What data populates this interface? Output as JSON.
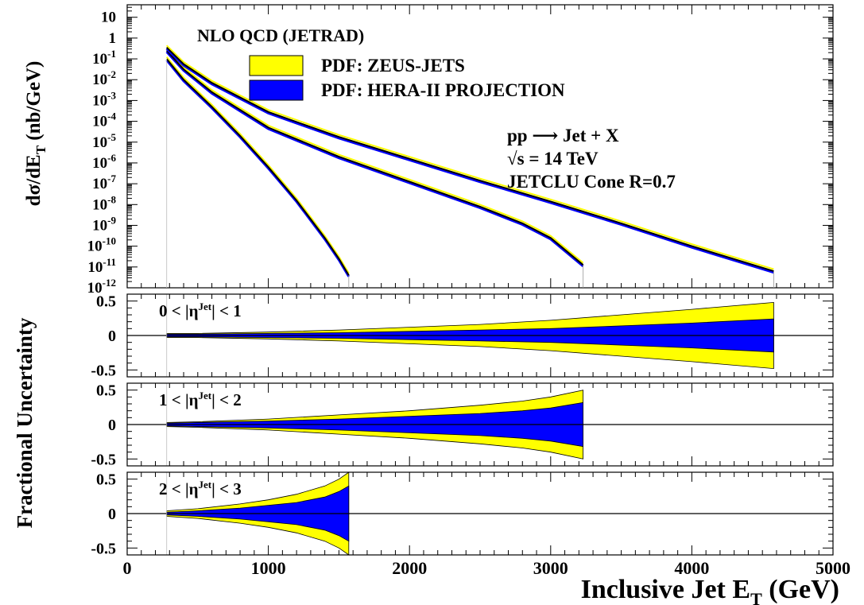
{
  "colors": {
    "zeus": "#ffff00",
    "hera": "#0000ff",
    "line": "#000000"
  },
  "chart_data": [
    {
      "type": "line",
      "panel": "cross-section",
      "title": "NLO QCD (JETRAD)",
      "ylabel": "dσ/dE",
      "ylabel_sub": "T",
      "ylabel_rest": " (nb/GeV)",
      "log_y": true,
      "xlim": [
        0,
        5000
      ],
      "ylim_exp": [
        -12,
        1.6
      ],
      "y_ticks": [
        {
          "base": "10",
          "exp": "-12",
          "v": -12
        },
        {
          "base": "10",
          "exp": "-11",
          "v": -11
        },
        {
          "base": "10",
          "exp": "-10",
          "v": -10
        },
        {
          "base": "10",
          "exp": "-9",
          "v": -9
        },
        {
          "base": "10",
          "exp": "-8",
          "v": -8
        },
        {
          "base": "10",
          "exp": "-7",
          "v": -7
        },
        {
          "base": "10",
          "exp": "-6",
          "v": -6
        },
        {
          "base": "10",
          "exp": "-5",
          "v": -5
        },
        {
          "base": "10",
          "exp": "-4",
          "v": -4
        },
        {
          "base": "10",
          "exp": "-3",
          "v": -3
        },
        {
          "base": "10",
          "exp": "-2",
          "v": -2
        },
        {
          "base": "10",
          "exp": "-1",
          "v": -1
        },
        {
          "base": "1",
          "exp": "",
          "v": 0
        },
        {
          "base": "10",
          "exp": "",
          "v": 1
        }
      ],
      "legend": [
        {
          "label": "PDF: ZEUS-JETS",
          "color_key": "zeus"
        },
        {
          "label": "PDF: HERA-II PROJECTION",
          "color_key": "hera"
        }
      ],
      "annotations": [
        "pp ⟶ Jet + X",
        "√s = 14 TeV",
        "JETCLU Cone R=0.7"
      ],
      "series": [
        {
          "x": [
            280,
            400,
            600,
            800,
            1000,
            1200,
            1400,
            1500,
            1570
          ],
          "log10_y": [
            -1.0,
            -2.0,
            -3.3,
            -4.7,
            -6.2,
            -7.8,
            -9.6,
            -10.6,
            -11.4
          ]
        },
        {
          "x": [
            280,
            400,
            600,
            1000,
            1500,
            2000,
            2500,
            2800,
            3000,
            3230
          ],
          "log10_y": [
            -0.6,
            -1.5,
            -2.6,
            -4.3,
            -5.7,
            -6.9,
            -8.1,
            -8.9,
            -9.6,
            -10.9
          ]
        },
        {
          "x": [
            280,
            400,
            600,
            1000,
            1500,
            2000,
            2500,
            3000,
            3500,
            4000,
            4580
          ],
          "log10_y": [
            -0.45,
            -1.25,
            -2.15,
            -3.55,
            -4.75,
            -5.8,
            -6.85,
            -7.85,
            -8.9,
            -10.0,
            -11.2
          ]
        }
      ]
    },
    {
      "type": "area",
      "panel": "uncertainty",
      "label": "0 < |η",
      "label_sup": "Jet",
      "label_rest": "| < 1",
      "ylim": [
        -0.6,
        0.6
      ],
      "y_ticks": [
        "0.5",
        "0",
        "-0.5"
      ],
      "x": [
        280,
        500,
        1000,
        1500,
        2000,
        2500,
        3000,
        3500,
        4000,
        4580
      ],
      "zeus": [
        0.03,
        0.03,
        0.05,
        0.08,
        0.12,
        0.16,
        0.22,
        0.3,
        0.38,
        0.48
      ],
      "hera": [
        0.02,
        0.02,
        0.03,
        0.04,
        0.06,
        0.08,
        0.1,
        0.14,
        0.18,
        0.24
      ]
    },
    {
      "type": "area",
      "panel": "uncertainty",
      "label": "1 < |η",
      "label_sup": "Jet",
      "label_rest": "| < 2",
      "ylim": [
        -0.6,
        0.6
      ],
      "y_ticks": [
        "0.5",
        "0",
        "-0.5"
      ],
      "x": [
        280,
        500,
        1000,
        1500,
        2000,
        2500,
        2800,
        3000,
        3230
      ],
      "zeus": [
        0.03,
        0.04,
        0.08,
        0.14,
        0.2,
        0.28,
        0.34,
        0.4,
        0.5
      ],
      "hera": [
        0.02,
        0.03,
        0.05,
        0.08,
        0.12,
        0.16,
        0.2,
        0.24,
        0.32
      ]
    },
    {
      "type": "area",
      "panel": "uncertainty",
      "label": "2 < |η",
      "label_sup": "Jet",
      "label_rest": "| < 3",
      "ylim": [
        -0.6,
        0.6
      ],
      "y_ticks": [
        "0.5",
        "0",
        "-0.5"
      ],
      "x": [
        280,
        500,
        800,
        1000,
        1200,
        1400,
        1500,
        1570
      ],
      "zeus": [
        0.04,
        0.07,
        0.14,
        0.2,
        0.28,
        0.4,
        0.5,
        0.6
      ],
      "hera": [
        0.02,
        0.04,
        0.08,
        0.12,
        0.16,
        0.24,
        0.32,
        0.4
      ]
    }
  ],
  "x_axis": {
    "label": "Inclusive Jet E",
    "label_sub": "T",
    "label_rest": " (GeV)",
    "ticks": [
      "0",
      "1000",
      "2000",
      "3000",
      "4000",
      "5000"
    ],
    "tick_values": [
      0,
      1000,
      2000,
      3000,
      4000,
      5000
    ]
  },
  "lower_ylabel": "Fractional Uncertainty"
}
